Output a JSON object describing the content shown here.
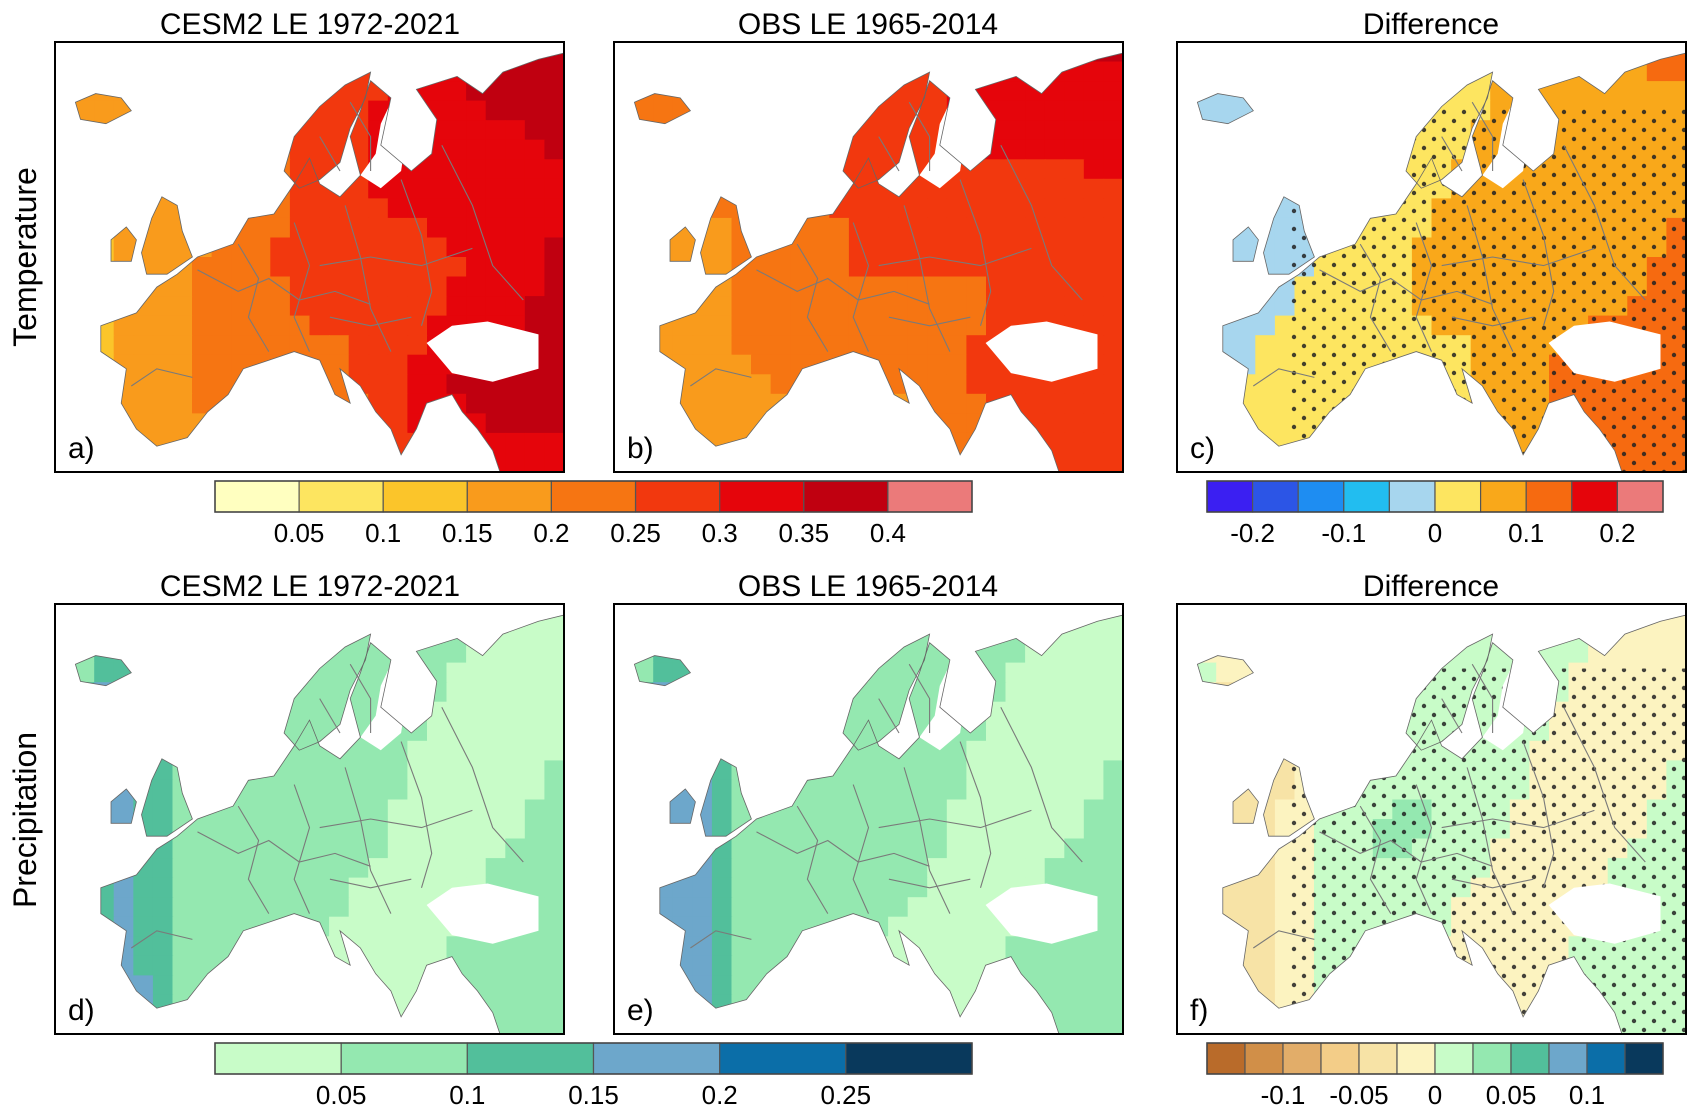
{
  "figure": {
    "row_labels": [
      "Temperature",
      "Precipitation"
    ]
  },
  "chart_data": [
    {
      "id": "a",
      "type": "heatmap",
      "row": 0,
      "col": 0,
      "title": "CESM2 LE 1972-2021",
      "panel_label": "a)",
      "variable": "Temperature",
      "scale": "temp",
      "field": {
        "base": 0.12,
        "east_gradient": 0.22,
        "north_gradient": 0.04,
        "south_east_bump": 0.05
      },
      "stippling": false
    },
    {
      "id": "b",
      "type": "heatmap",
      "row": 0,
      "col": 1,
      "title": "OBS LE 1965-2014",
      "panel_label": "b)",
      "variable": "Temperature",
      "scale": "temp",
      "field": {
        "base": 0.13,
        "east_gradient": 0.12,
        "north_gradient": 0.1,
        "south_east_bump": 0.04
      },
      "stippling": false
    },
    {
      "id": "c",
      "type": "heatmap",
      "row": 0,
      "col": 2,
      "title": "Difference",
      "panel_label": "c)",
      "variable": "Temperature",
      "scale": "tempdiff",
      "field": {
        "base": -0.02,
        "east_gradient": 0.15,
        "north_gradient": -0.03,
        "south_east_bump": 0.03
      },
      "stippling": true
    },
    {
      "id": "d",
      "type": "heatmap",
      "row": 1,
      "col": 0,
      "title": "CESM2 LE 1972-2021",
      "panel_label": "d)",
      "variable": "Precipitation",
      "scale": "precip",
      "field": {
        "base": 0.05,
        "west_coast": 0.12,
        "central": 0.03
      },
      "stippling": false
    },
    {
      "id": "e",
      "type": "heatmap",
      "row": 1,
      "col": 1,
      "title": "OBS LE 1965-2014",
      "panel_label": "e)",
      "variable": "Precipitation",
      "scale": "precip",
      "field": {
        "base": 0.05,
        "west_coast": 0.14,
        "central": 0.04
      },
      "stippling": false
    },
    {
      "id": "f",
      "type": "heatmap",
      "row": 1,
      "col": 2,
      "title": "Difference",
      "panel_label": "f)",
      "variable": "Precipitation",
      "scale": "precipdiff",
      "field": {
        "base": 0.0,
        "west_coast": -0.04,
        "central": 0.02
      },
      "stippling": true
    }
  ],
  "colorbars": [
    {
      "id": "temp",
      "row": 0,
      "pos": "left-wide",
      "colors": [
        "#ffffc0",
        "#fde560",
        "#fbc52a",
        "#f99b1c",
        "#f67512",
        "#f2380e",
        "#e5050b",
        "#c00010",
        "#eb7a7a"
      ],
      "ticks": [
        "0.05",
        "0.1",
        "0.15",
        "0.2",
        "0.25",
        "0.3",
        "0.35",
        "0.4"
      ]
    },
    {
      "id": "tempdiff",
      "row": 0,
      "pos": "right",
      "colors": [
        "#3b1ff2",
        "#2c55e6",
        "#1e8df2",
        "#22bdf0",
        "#a7d6ee",
        "#fde560",
        "#f9a81a",
        "#f66a10",
        "#e5050b",
        "#eb7a7a"
      ],
      "ticks": [
        "-0.2",
        "-0.1",
        "0",
        "0.1",
        "0.2"
      ]
    },
    {
      "id": "precip",
      "row": 1,
      "pos": "left-wide",
      "colors": [
        "#c8fcc8",
        "#94e8b0",
        "#52bf9b",
        "#6da7cb",
        "#0b6ea8",
        "#09395c"
      ],
      "ticks": [
        "0.05",
        "0.1",
        "0.15",
        "0.2",
        "0.25"
      ]
    },
    {
      "id": "precipdiff",
      "row": 1,
      "pos": "right",
      "colors": [
        "#b96b2a",
        "#d18f48",
        "#e2ad69",
        "#f3cd88",
        "#f7e3a6",
        "#fcf3c0",
        "#c8fcc8",
        "#94e8b0",
        "#52bf9b",
        "#6da7cb",
        "#0b6ea8",
        "#09395c"
      ],
      "ticks": [
        "-0.1",
        "-0.05",
        "0",
        "0.05",
        "0.1"
      ]
    }
  ]
}
